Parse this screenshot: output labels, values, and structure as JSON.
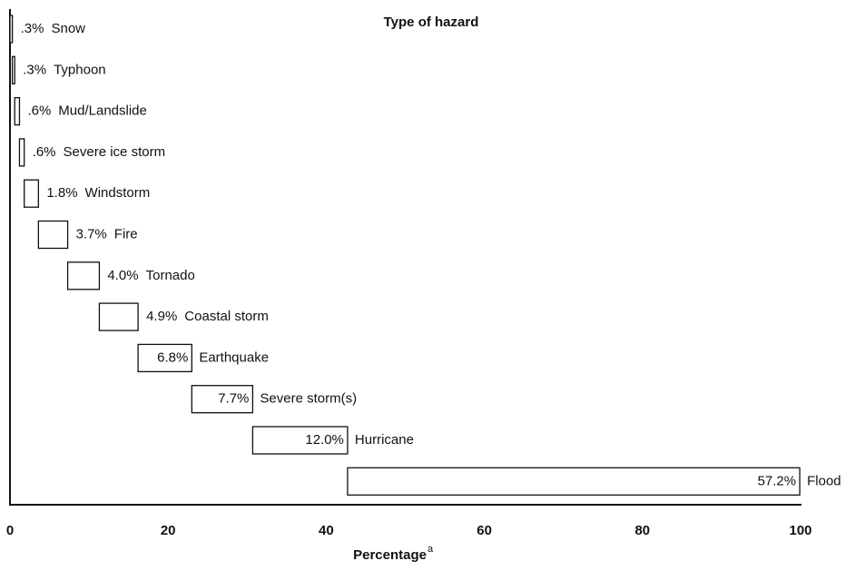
{
  "chart_data": {
    "type": "waterfall_bar",
    "title": "Type of hazard",
    "xlabel": "Percentage",
    "xlabel_note": "a",
    "categories": [
      "Snow",
      "Typhoon",
      "Mud/Landslide",
      "Severe ice storm",
      "Windstorm",
      "Fire",
      "Tornado",
      "Coastal storm",
      "Earthquake",
      "Severe storm(s)",
      "Hurricane",
      "Flood"
    ],
    "values": [
      0.3,
      0.3,
      0.6,
      0.6,
      1.8,
      3.7,
      4.0,
      4.9,
      6.8,
      7.7,
      12.0,
      57.2
    ],
    "value_labels": [
      ".3%",
      ".3%",
      ".6%",
      ".6%",
      "1.8%",
      "3.7%",
      "4.0%",
      "4.9%",
      "6.8%",
      "7.7%",
      "12.0%",
      "57.2%"
    ],
    "color": "#ffffff",
    "xlim": [
      0,
      100
    ],
    "xticks": [
      0,
      20,
      40,
      60,
      80,
      100
    ]
  }
}
